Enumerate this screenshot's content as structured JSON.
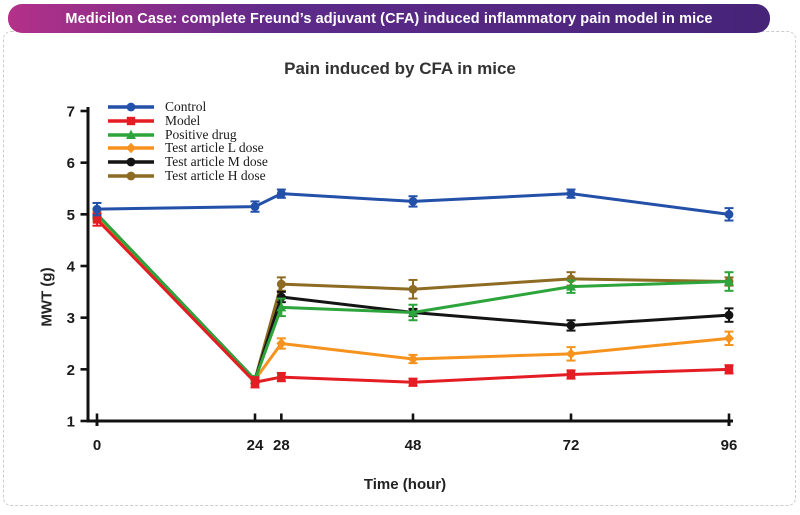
{
  "banner": {
    "title": "Medicilon Case: complete Freund’s adjuvant (CFA) induced inflammatory pain model in mice",
    "gradient_from": "#b43189",
    "gradient_mid": "#5e2a8a",
    "gradient_to": "#462478"
  },
  "chart_data": {
    "type": "line",
    "title": "Pain induced by CFA in mice",
    "xlabel": "Time (hour)",
    "ylabel": "MWT (g)",
    "x": [
      0,
      24,
      28,
      48,
      72,
      96
    ],
    "xticks": [
      0,
      24,
      28,
      48,
      72,
      96
    ],
    "yticks": [
      1,
      2,
      3,
      4,
      5,
      6,
      7
    ],
    "xlim": [
      0,
      96
    ],
    "ylim": [
      1,
      7
    ],
    "grid": false,
    "legend_position": "top-left",
    "axis_color": "#111111",
    "series": [
      {
        "name": "Control",
        "color": "#2350a8",
        "marker": "circle",
        "values": [
          5.1,
          5.15,
          5.4,
          5.25,
          5.4,
          5.0
        ],
        "errors": [
          0.12,
          0.1,
          0.08,
          0.1,
          0.08,
          0.12
        ]
      },
      {
        "name": "Model",
        "color": "#e41c23",
        "marker": "square",
        "values": [
          4.9,
          1.75,
          1.85,
          1.75,
          1.9,
          2.0
        ],
        "errors": [
          0.12,
          0.1,
          0.08,
          0.07,
          0.08,
          0.08
        ]
      },
      {
        "name": "Positive drug",
        "color": "#2ea43c",
        "marker": "triangle",
        "values": [
          5.0,
          1.8,
          3.2,
          3.1,
          3.6,
          3.7
        ],
        "errors": [
          0.1,
          0.07,
          0.17,
          0.15,
          0.12,
          0.18
        ]
      },
      {
        "name": "Test article L dose",
        "color": "#f6921e",
        "marker": "diamond",
        "values": [
          4.95,
          1.8,
          2.5,
          2.2,
          2.3,
          2.6
        ],
        "errors": [
          0.1,
          0.07,
          0.1,
          0.08,
          0.13,
          0.13
        ]
      },
      {
        "name": "Test article M dose",
        "color": "#141414",
        "marker": "circle",
        "values": [
          5.0,
          1.8,
          3.4,
          3.1,
          2.85,
          3.05
        ],
        "errors": [
          0.1,
          0.07,
          0.1,
          0.07,
          0.1,
          0.13
        ]
      },
      {
        "name": "Test article H dose",
        "color": "#8d6b22",
        "marker": "circle",
        "values": [
          5.0,
          1.8,
          3.65,
          3.55,
          3.75,
          3.7
        ],
        "errors": [
          0.1,
          0.07,
          0.13,
          0.18,
          0.13,
          0.08
        ]
      }
    ]
  }
}
